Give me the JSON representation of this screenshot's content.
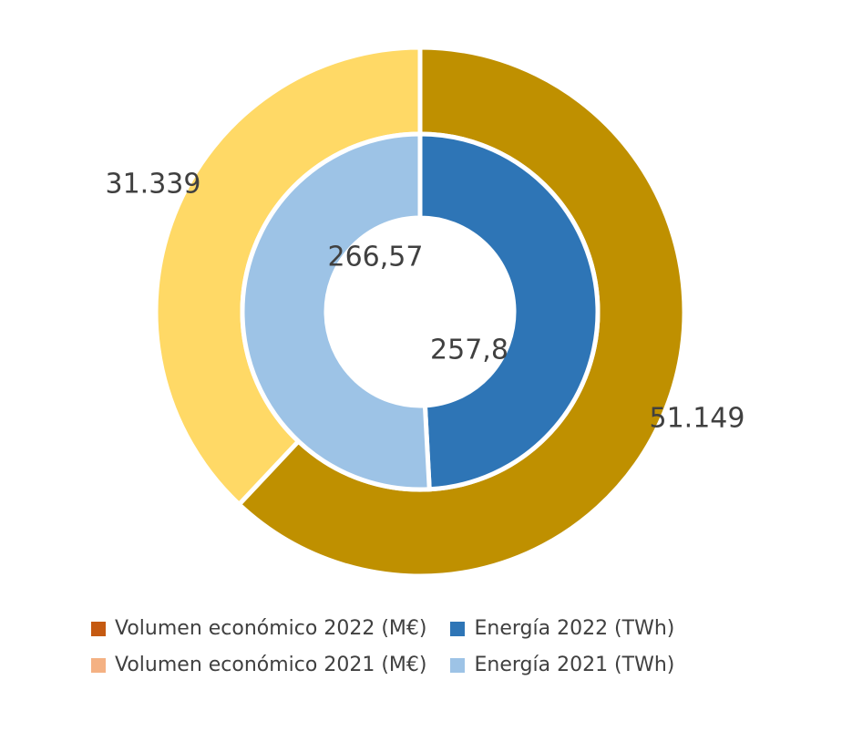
{
  "chart_data": {
    "type": "pie",
    "variant": "nested-donut",
    "rings": [
      {
        "ring": "outer",
        "slices": [
          {
            "value": 51149,
            "label": "51.149",
            "color": "#BF9000"
          },
          {
            "value": 31339,
            "label": "31.339",
            "color": "#FFD966"
          }
        ]
      },
      {
        "ring": "inner",
        "slices": [
          {
            "value": 257.8,
            "label": "257,8",
            "color": "#2E75B6"
          },
          {
            "value": 266.57,
            "label": "266,57",
            "color": "#9DC3E6"
          }
        ]
      }
    ],
    "legend": {
      "position": "bottom",
      "entries": [
        {
          "name": "Volumen económico 2022 (M€)",
          "color": "#C55A11"
        },
        {
          "name": "Energía 2022 (TWh)",
          "color": "#2E75B6"
        },
        {
          "name": "Volumen económico 2021 (M€)",
          "color": "#F4B183"
        },
        {
          "name": "Energía 2021 (TWh)",
          "color": "#9DC3E6"
        }
      ]
    }
  }
}
